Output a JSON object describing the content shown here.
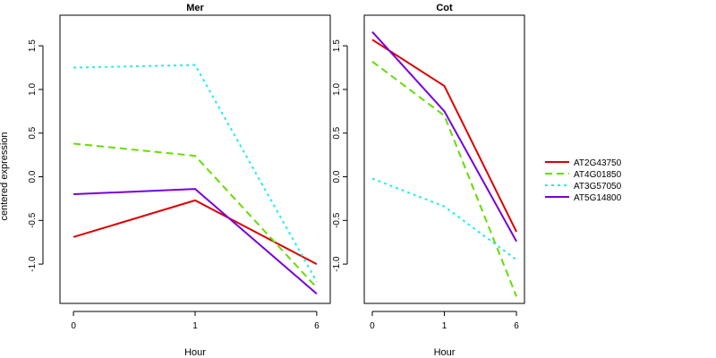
{
  "chart_data": {
    "type": "line",
    "ylabel": "centered expression",
    "legend_position": "right",
    "series_styles": [
      {
        "name": "AT2G43750",
        "color": "#dd0000",
        "dash": "solid"
      },
      {
        "name": "AT4G01850",
        "color": "#66dd00",
        "dash": "dashed"
      },
      {
        "name": "AT3G57050",
        "color": "#22eeee",
        "dash": "dotted"
      },
      {
        "name": "AT5G14800",
        "color": "#7700dd",
        "dash": "solid"
      }
    ],
    "panels": [
      {
        "title": "Mer",
        "xlabel": "Hour",
        "x": [
          "0",
          "1",
          "6"
        ],
        "ylim": [
          -1.45,
          1.85
        ],
        "yticks": [
          "-1.0",
          "-0.5",
          "0.0",
          "0.5",
          "1.0",
          "1.5"
        ],
        "series": [
          {
            "name": "AT2G43750",
            "values": [
              -0.69,
              -0.27,
              -1.0
            ]
          },
          {
            "name": "AT4G01850",
            "values": [
              0.38,
              0.24,
              -1.27
            ]
          },
          {
            "name": "AT3G57050",
            "values": [
              1.25,
              1.28,
              -1.2
            ]
          },
          {
            "name": "AT5G14800",
            "values": [
              -0.2,
              -0.14,
              -1.34
            ]
          }
        ]
      },
      {
        "title": "Cot",
        "xlabel": "Hour",
        "x": [
          "0",
          "1",
          "6"
        ],
        "ylim": [
          -1.45,
          1.85
        ],
        "yticks": [
          "-1.0",
          "-0.5",
          "0.0",
          "0.5",
          "1.0",
          "1.5"
        ],
        "series": [
          {
            "name": "AT2G43750",
            "values": [
              1.57,
              1.04,
              -0.63
            ]
          },
          {
            "name": "AT4G01850",
            "values": [
              1.32,
              0.7,
              -1.37
            ]
          },
          {
            "name": "AT3G57050",
            "values": [
              -0.02,
              -0.34,
              -0.95
            ]
          },
          {
            "name": "AT5G14800",
            "values": [
              1.66,
              0.75,
              -0.74
            ]
          }
        ]
      }
    ]
  }
}
